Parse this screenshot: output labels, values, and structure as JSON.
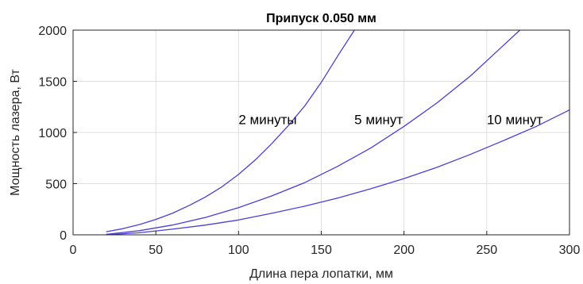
{
  "chart_data": {
    "type": "line",
    "title": "Припуск 0.050 мм",
    "xlabel": "Длина пера лопатки, мм",
    "ylabel": "Мощность лазера, Вт",
    "xlim": [
      0,
      300
    ],
    "ylim": [
      0,
      2000
    ],
    "xticks": [
      0,
      50,
      100,
      150,
      200,
      250,
      300
    ],
    "yticks": [
      0,
      500,
      1000,
      1500,
      2000
    ],
    "grid": true,
    "line_color": "#4b3fd6",
    "series": [
      {
        "name": "2 минуты",
        "x": [
          20,
          30,
          40,
          50,
          60,
          70,
          80,
          90,
          100,
          110,
          120,
          130,
          140,
          150,
          160,
          170
        ],
        "y": [
          30,
          60,
          100,
          150,
          210,
          285,
          370,
          470,
          590,
          730,
          890,
          1065,
          1260,
          1490,
          1750,
          2000
        ]
      },
      {
        "name": "5 минут",
        "x": [
          20,
          40,
          60,
          80,
          100,
          120,
          140,
          160,
          180,
          200,
          220,
          240,
          260,
          270
        ],
        "y": [
          5,
          40,
          95,
          170,
          265,
          380,
          510,
          670,
          850,
          1060,
          1290,
          1550,
          1850,
          2000
        ]
      },
      {
        "name": "10 минут",
        "x": [
          20,
          40,
          60,
          80,
          100,
          120,
          140,
          160,
          180,
          200,
          220,
          240,
          260,
          280,
          300
        ],
        "y": [
          0,
          20,
          55,
          95,
          145,
          210,
          280,
          360,
          450,
          550,
          660,
          785,
          920,
          1060,
          1220
        ]
      }
    ],
    "annotations": [
      {
        "text": "2 минуты",
        "x": 100,
        "y": 1080
      },
      {
        "text": "5 минут",
        "x": 170,
        "y": 1080
      },
      {
        "text": "10 минут",
        "x": 250,
        "y": 1080
      }
    ]
  }
}
